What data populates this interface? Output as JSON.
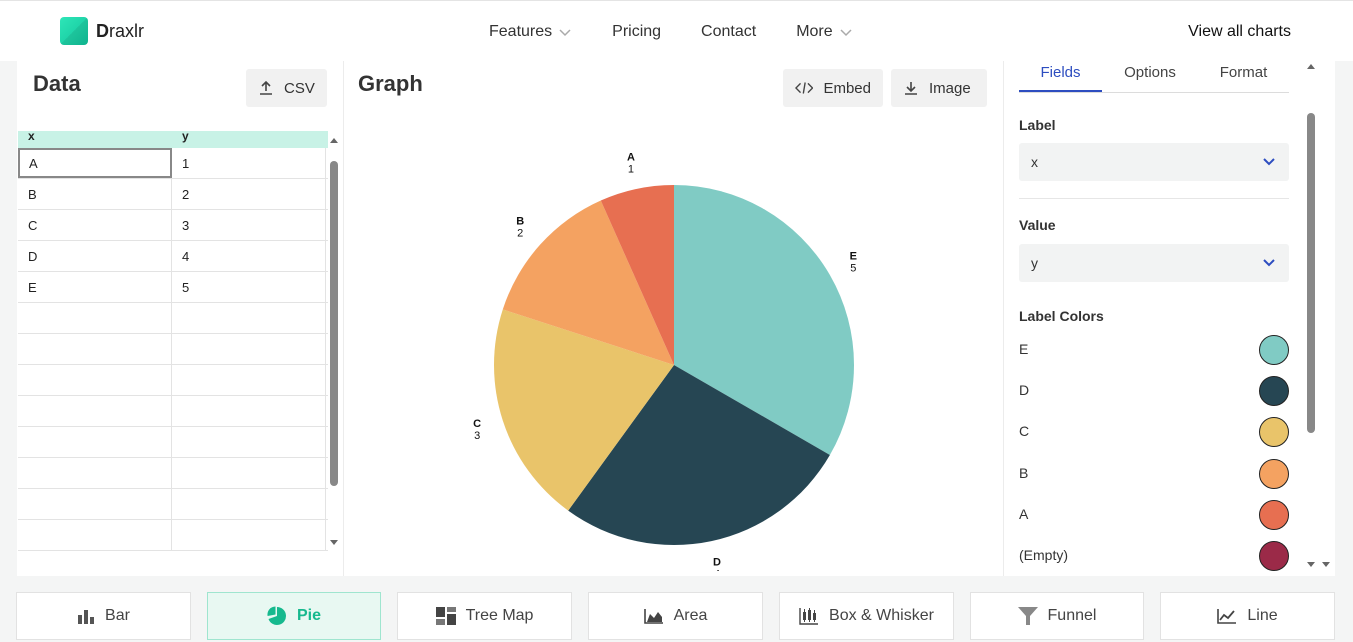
{
  "brand": {
    "letter": "D",
    "rest": "raxlr"
  },
  "nav": {
    "features": "Features",
    "pricing": "Pricing",
    "contact": "Contact",
    "more": "More",
    "view_all": "View all charts"
  },
  "data_panel": {
    "title": "Data",
    "csv_label": "CSV",
    "columns": [
      "x",
      "y"
    ],
    "rows": [
      [
        "A",
        "1"
      ],
      [
        "B",
        "2"
      ],
      [
        "C",
        "3"
      ],
      [
        "D",
        "4"
      ],
      [
        "E",
        "5"
      ],
      [
        "",
        ""
      ],
      [
        "",
        ""
      ],
      [
        "",
        ""
      ],
      [
        "",
        ""
      ],
      [
        "",
        ""
      ],
      [
        "",
        ""
      ],
      [
        "",
        ""
      ],
      [
        "",
        ""
      ]
    ]
  },
  "graph_panel": {
    "title": "Graph",
    "embed_label": "Embed",
    "image_label": "Image"
  },
  "chart_data": {
    "type": "pie",
    "categories": [
      "E",
      "D",
      "C",
      "B",
      "A"
    ],
    "values": [
      5,
      4,
      3,
      2,
      1
    ],
    "colors": [
      "#80cbc4",
      "#264653",
      "#e9c46a",
      "#f4a261",
      "#e76f51"
    ]
  },
  "options_panel": {
    "tabs": [
      "Fields",
      "Options",
      "Format"
    ],
    "label_field": {
      "label": "Label",
      "value": "x"
    },
    "value_field": {
      "label": "Value",
      "value": "y"
    },
    "label_colors": {
      "title": "Label Colors",
      "items": [
        {
          "name": "E",
          "color": "#80cbc4"
        },
        {
          "name": "D",
          "color": "#264653"
        },
        {
          "name": "C",
          "color": "#e9c46a"
        },
        {
          "name": "B",
          "color": "#f4a261"
        },
        {
          "name": "A",
          "color": "#e76f51"
        },
        {
          "name": "(Empty)",
          "color": "#9b2a48"
        }
      ]
    }
  },
  "chart_types": {
    "bar": "Bar",
    "pie": "Pie",
    "treemap": "Tree Map",
    "area": "Area",
    "box": "Box & Whisker",
    "funnel": "Funnel",
    "line": "Line"
  }
}
